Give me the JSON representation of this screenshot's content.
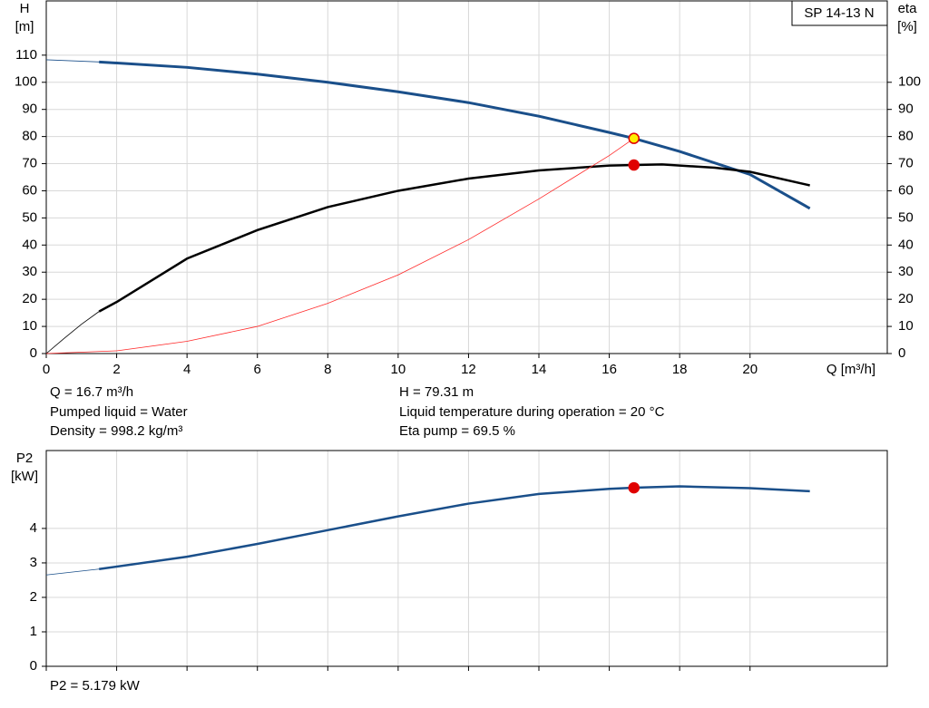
{
  "chart_data": [
    {
      "type": "line",
      "model_label": "SP 14-13 N",
      "ylabel": [
        "H",
        "[m]"
      ],
      "y2label": [
        "eta",
        "[%]"
      ],
      "xlabel": "Q [m³/h]",
      "xlim": [
        0,
        23.9
      ],
      "xticks": [
        0,
        2,
        4,
        6,
        8,
        10,
        12,
        14,
        16,
        18,
        20
      ],
      "ylim": [
        0,
        130
      ],
      "yticks": [
        0,
        10,
        20,
        30,
        40,
        50,
        60,
        70,
        80,
        90,
        100,
        110
      ],
      "y2lim": [
        0,
        130
      ],
      "y2ticks": [
        0,
        10,
        20,
        30,
        40,
        50,
        60,
        70,
        80,
        90,
        100
      ],
      "grid": true,
      "series": [
        {
          "color": "#1a4f8a",
          "line_width": 0.8,
          "x": [
            0,
            1.5
          ],
          "values": [
            108.3,
            107.5
          ]
        },
        {
          "color": "#1a4f8a",
          "line_width": 3,
          "x": [
            1.5,
            4,
            6,
            8,
            10,
            12,
            14,
            16,
            16.7,
            18,
            20,
            21.7
          ],
          "values": [
            107.5,
            105.5,
            103,
            100,
            96.5,
            92.5,
            87.5,
            81.5,
            79.3,
            74.5,
            66,
            53.5
          ]
        },
        {
          "color": "#000000",
          "line_width": 0.8,
          "axis": "y2",
          "x": [
            0,
            0.5,
            1,
            1.5
          ],
          "values": [
            0,
            5.5,
            10.8,
            15.5
          ]
        },
        {
          "color": "#000000",
          "line_width": 2.5,
          "axis": "y2",
          "x": [
            1.5,
            2,
            4,
            6,
            8,
            10,
            12,
            14,
            16,
            17.5,
            19,
            20,
            21.7
          ],
          "values": [
            15.5,
            19,
            35,
            45.5,
            54,
            60,
            64.5,
            67.5,
            69.3,
            69.7,
            68.5,
            67,
            62
          ]
        },
        {
          "color": "#ff2a2a",
          "line_width": 0.8,
          "x": [
            0,
            2,
            4,
            6,
            8,
            10,
            12,
            14,
            16,
            16.7
          ],
          "values": [
            0,
            1,
            4.5,
            10,
            18.5,
            29,
            42,
            57,
            73,
            79.3
          ]
        }
      ],
      "points": [
        {
          "x": 16.7,
          "y": 79.31,
          "color": "#ffee00",
          "stroke": "#e00000"
        },
        {
          "x": 16.7,
          "y": 69.5,
          "color": "#e00000",
          "stroke": "#e00000",
          "axis": "y2"
        }
      ],
      "annotations": [
        "Q = 16.7 m³/h",
        "Pumped liquid = Water",
        "Density = 998.2 kg/m³",
        "H = 79.31 m",
        "Liquid temperature during operation = 20 °C",
        "Eta pump = 69.5 %"
      ]
    },
    {
      "type": "line",
      "ylabel": [
        "P2",
        "[kW]"
      ],
      "xlim": [
        0,
        23.9
      ],
      "ylim": [
        0,
        6.26
      ],
      "yticks": [
        0,
        1,
        2,
        3,
        4
      ],
      "grid": true,
      "series": [
        {
          "color": "#1a4f8a",
          "line_width": 0.8,
          "x": [
            0,
            1.5
          ],
          "values": [
            2.65,
            2.82
          ]
        },
        {
          "color": "#1a4f8a",
          "line_width": 2.5,
          "x": [
            1.5,
            4,
            6,
            8,
            10,
            12,
            14,
            16,
            16.7,
            18,
            20,
            21.7
          ],
          "values": [
            2.82,
            3.18,
            3.55,
            3.95,
            4.35,
            4.72,
            5.0,
            5.15,
            5.18,
            5.22,
            5.17,
            5.08
          ]
        }
      ],
      "points": [
        {
          "x": 16.7,
          "y": 5.179,
          "color": "#e00000",
          "stroke": "#e00000"
        }
      ],
      "annotations": [
        "P2 = 5.179 kW"
      ]
    }
  ]
}
